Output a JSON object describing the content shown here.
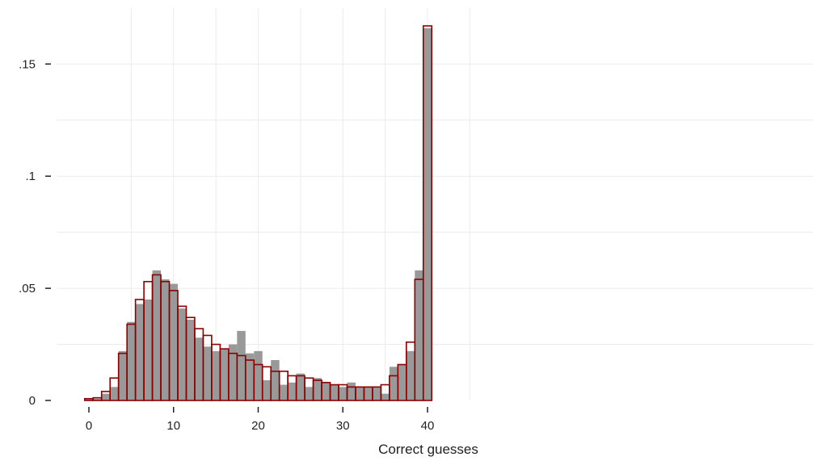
{
  "chart_data": {
    "type": "bar",
    "xlabel": "Correct guesses",
    "ylabel": "",
    "xlim": [
      -2,
      42
    ],
    "ylim": [
      0,
      0.17
    ],
    "x_ticks": [
      0,
      10,
      20,
      30,
      40
    ],
    "x_tick_labels": [
      "0",
      "10",
      "20",
      "30",
      "40"
    ],
    "y_ticks": [
      0,
      0.05,
      0.1,
      0.15
    ],
    "y_tick_labels": [
      "0",
      ".05",
      ".1",
      ".15"
    ],
    "grid": true,
    "bin_width": 1,
    "series": [
      {
        "style": "filled",
        "color": "#999999",
        "x": [
          -1,
          0,
          1,
          2,
          3,
          4,
          5,
          6,
          7,
          8,
          9,
          10,
          11,
          12,
          13,
          14,
          15,
          16,
          17,
          18,
          19,
          20,
          21,
          22,
          23,
          24,
          25,
          26,
          27,
          28,
          29,
          30,
          31,
          32,
          33,
          34,
          35,
          36,
          37,
          38,
          39,
          40
        ],
        "values": [
          0,
          0.0005,
          0.0008,
          0.003,
          0.006,
          0.022,
          0.035,
          0.043,
          0.045,
          0.058,
          0.054,
          0.052,
          0.041,
          0.036,
          0.028,
          0.024,
          0.022,
          0.023,
          0.025,
          0.031,
          0.021,
          0.022,
          0.009,
          0.018,
          0.007,
          0.008,
          0.012,
          0.006,
          0.01,
          0.008,
          0.007,
          0.006,
          0.008,
          0.006,
          0.006,
          0.006,
          0.003,
          0.015,
          0.016,
          0.022,
          0.058,
          0.166
        ]
      },
      {
        "style": "outline",
        "color": "#8b0000",
        "x": [
          -1,
          0,
          1,
          2,
          3,
          4,
          5,
          6,
          7,
          8,
          9,
          10,
          11,
          12,
          13,
          14,
          15,
          16,
          17,
          18,
          19,
          20,
          21,
          22,
          23,
          24,
          25,
          26,
          27,
          28,
          29,
          30,
          31,
          32,
          33,
          34,
          35,
          36,
          37,
          38,
          39,
          40
        ],
        "values": [
          0,
          0.0008,
          0.0012,
          0.004,
          0.01,
          0.021,
          0.034,
          0.045,
          0.053,
          0.056,
          0.053,
          0.049,
          0.042,
          0.037,
          0.032,
          0.029,
          0.025,
          0.023,
          0.021,
          0.02,
          0.018,
          0.016,
          0.015,
          0.013,
          0.013,
          0.011,
          0.011,
          0.01,
          0.009,
          0.008,
          0.007,
          0.007,
          0.006,
          0.006,
          0.006,
          0.006,
          0.007,
          0.011,
          0.016,
          0.026,
          0.054,
          0.167
        ]
      }
    ]
  }
}
